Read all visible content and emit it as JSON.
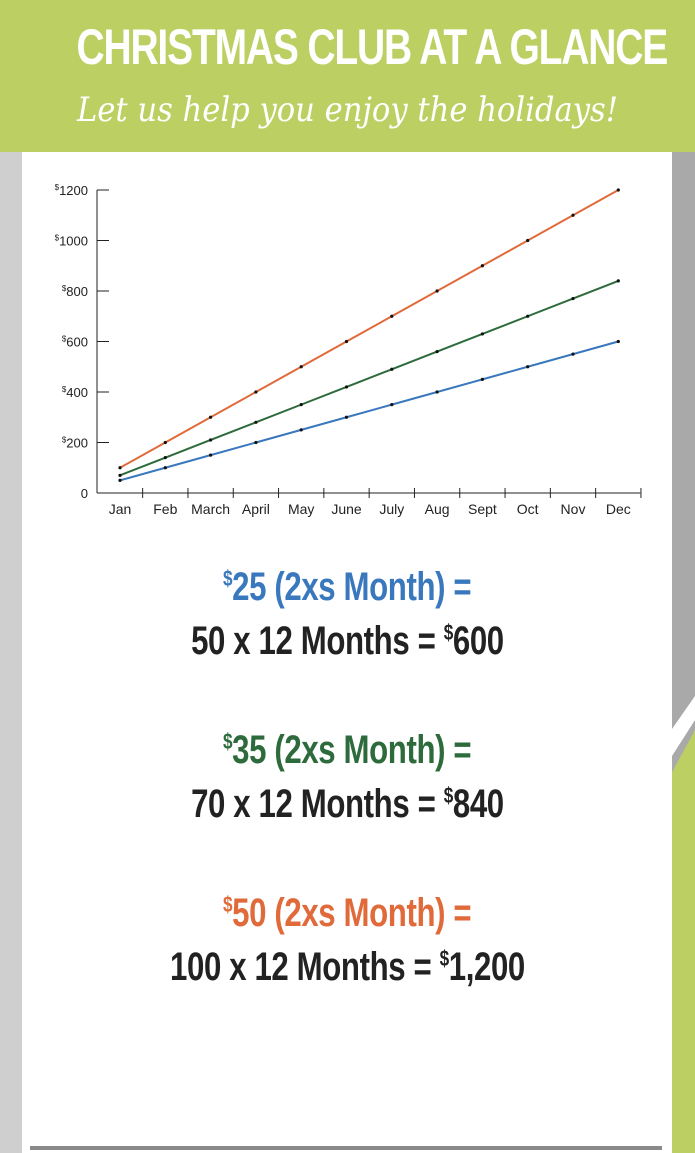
{
  "header": {
    "title": "CHRISTMAS CLUB AT A GLANCE",
    "subtitle": "Let us help you enjoy the holidays!"
  },
  "colors": {
    "banner": "#bccf62",
    "series_25": "#3a78bd",
    "series_35": "#2e6b3c",
    "series_50": "#e06a3a",
    "text_dark": "#222222"
  },
  "chart_data": {
    "type": "line",
    "title": "",
    "xlabel": "",
    "ylabel": "",
    "categories": [
      "Jan",
      "Feb",
      "March",
      "April",
      "May",
      "June",
      "July",
      "Aug",
      "Sept",
      "Oct",
      "Nov",
      "Dec"
    ],
    "ylim": [
      0,
      1200
    ],
    "yticks": [
      0,
      200,
      400,
      600,
      800,
      1000,
      1200
    ],
    "ytick_labels": [
      "0",
      "200",
      "400",
      "600",
      "800",
      "1000",
      "1200"
    ],
    "ytick_prefix": "$",
    "grid": false,
    "legend": "none",
    "series": [
      {
        "color": "#e06a3a",
        "values": [
          100,
          200,
          300,
          400,
          500,
          600,
          700,
          800,
          900,
          1000,
          1100,
          1200
        ]
      },
      {
        "color": "#2e6b3c",
        "values": [
          70,
          140,
          210,
          280,
          350,
          420,
          490,
          560,
          630,
          700,
          770,
          840
        ]
      },
      {
        "color": "#3a78bd",
        "values": [
          50,
          100,
          150,
          200,
          250,
          300,
          350,
          400,
          450,
          500,
          550,
          600
        ]
      }
    ]
  },
  "plans": [
    {
      "plan_sup": "$",
      "plan_text": "25 (2xs Month) =",
      "total_text": "50 x 12 Months = ",
      "total_sup": "$",
      "total_value": "600",
      "color": "#3a78bd"
    },
    {
      "plan_sup": "$",
      "plan_text": "35 (2xs Month) =",
      "total_text": "70 x 12 Months = ",
      "total_sup": "$",
      "total_value": "840",
      "color": "#2e6b3c"
    },
    {
      "plan_sup": "$",
      "plan_text": "50 (2xs Month) =",
      "total_text": "100 x 12 Months = ",
      "total_sup": "$",
      "total_value": "1,200",
      "color": "#e06a3a"
    }
  ]
}
